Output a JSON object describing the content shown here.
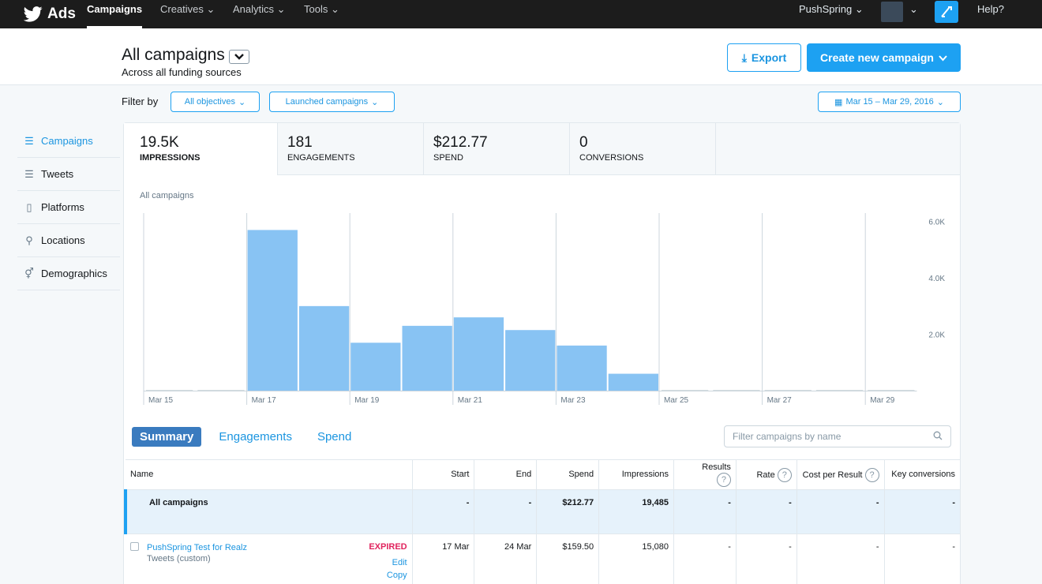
{
  "topnav": {
    "brand": "Ads",
    "items": [
      "Campaigns",
      "Creatives",
      "Analytics",
      "Tools"
    ],
    "account": "PushSpring",
    "help": "Help?"
  },
  "header": {
    "title": "All campaigns",
    "subtitle": "Across all funding sources",
    "export_label": "Export",
    "create_label": "Create new campaign"
  },
  "filters": {
    "label": "Filter by",
    "objectives": "All objectives",
    "status": "Launched campaigns",
    "date_range": "Mar 15 – Mar 29, 2016"
  },
  "sidebar": {
    "items": [
      {
        "label": "Campaigns",
        "icon": "list-icon",
        "active": true
      },
      {
        "label": "Tweets",
        "icon": "list-icon",
        "active": false
      },
      {
        "label": "Platforms",
        "icon": "phone-icon",
        "active": false
      },
      {
        "label": "Locations",
        "icon": "pin-icon",
        "active": false
      },
      {
        "label": "Demographics",
        "icon": "people-icon",
        "active": false
      }
    ]
  },
  "metrics": [
    {
      "value": "19.5K",
      "label": "IMPRESSIONS"
    },
    {
      "value": "181",
      "label": "ENGAGEMENTS"
    },
    {
      "value": "$212.77",
      "label": "SPEND"
    },
    {
      "value": "0",
      "label": "CONVERSIONS"
    }
  ],
  "chart_caption": "All campaigns",
  "chart_data": {
    "type": "bar",
    "categories": [
      "Mar 15",
      "Mar 16",
      "Mar 17",
      "Mar 18",
      "Mar 19",
      "Mar 20",
      "Mar 21",
      "Mar 22",
      "Mar 23",
      "Mar 24",
      "Mar 25",
      "Mar 26",
      "Mar 27",
      "Mar 28",
      "Mar 29"
    ],
    "values": [
      0,
      0,
      5700,
      3000,
      1700,
      2300,
      2600,
      2150,
      1600,
      600,
      0,
      0,
      0,
      0,
      0
    ],
    "x_tick_labels": [
      "Mar 15",
      "Mar 17",
      "Mar 19",
      "Mar 21",
      "Mar 23",
      "Mar 25",
      "Mar 27",
      "Mar 29"
    ],
    "y_tick_labels": [
      "2.0K",
      "4.0K",
      "6.0K"
    ],
    "y_ticks": [
      2000,
      4000,
      6000
    ],
    "ylim": [
      0,
      6000
    ],
    "color": "#88c3f3"
  },
  "table_tabs": [
    "Summary",
    "Engagements",
    "Spend"
  ],
  "table_filter_placeholder": "Filter campaigns by name",
  "table": {
    "headers": {
      "name": "Name",
      "start": "Start",
      "end": "End",
      "spend": "Spend",
      "impressions": "Impressions",
      "results": "Results",
      "rate": "Rate",
      "cost_per_result": "Cost per Result",
      "key_conversions": "Key conversions"
    },
    "all_row": {
      "name": "All campaigns",
      "start": "-",
      "end": "-",
      "spend": "$212.77",
      "impressions": "19,485",
      "results": "-",
      "rate": "-",
      "cost": "-",
      "conversions": "-"
    },
    "rows": [
      {
        "name": "PushSpring Test for Realz",
        "sub": "Tweets (custom)",
        "status": "EXPIRED",
        "edit": "Edit",
        "copy": "Copy",
        "start": "17 Mar",
        "end": "24 Mar",
        "spend": "$159.50",
        "impressions": "15,080",
        "results": "-",
        "rate": "-",
        "cost": "-",
        "conversions": "-"
      }
    ]
  }
}
